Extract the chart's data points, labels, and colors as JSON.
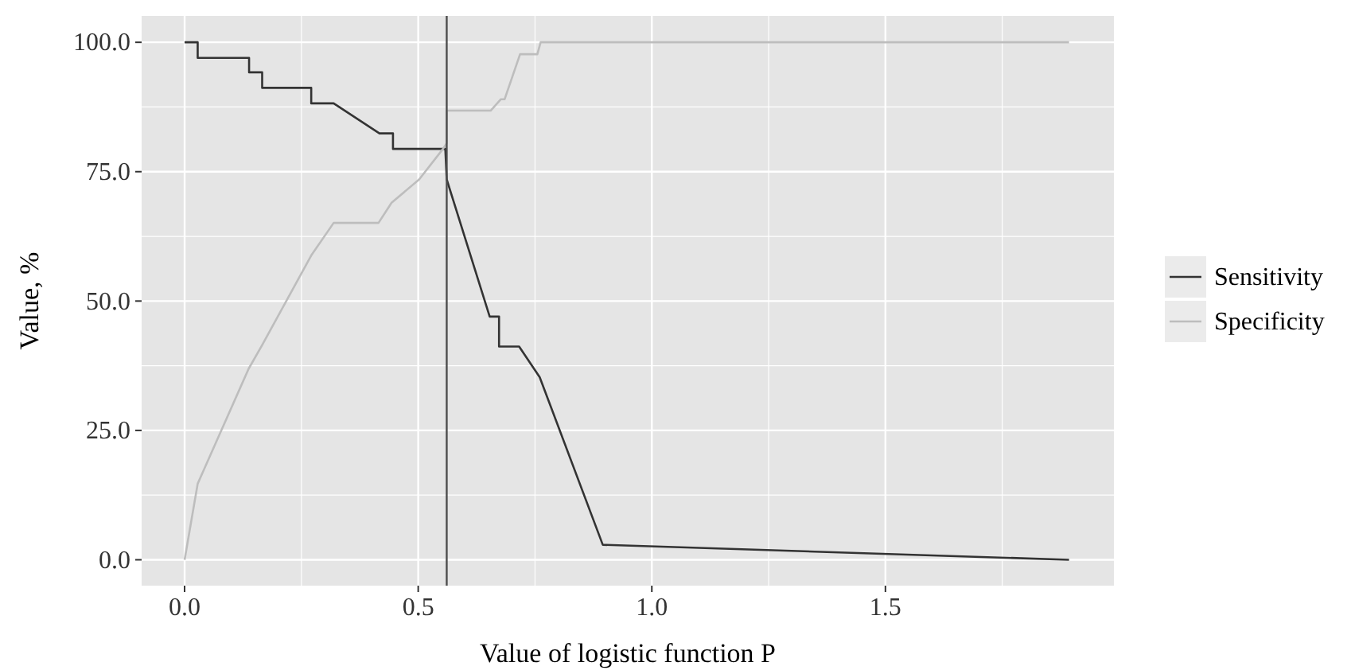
{
  "chart_data": {
    "type": "line",
    "xlabel": "Value of logistic function P",
    "ylabel": "Value, %",
    "xlim": [
      -0.092,
      1.989
    ],
    "ylim": [
      -5,
      105.1
    ],
    "xticks": [
      {
        "value": 0,
        "label": "0.0"
      },
      {
        "value": 0.5,
        "label": "0.5"
      },
      {
        "value": 1,
        "label": "1.0"
      },
      {
        "value": 1.5,
        "label": "1.5"
      }
    ],
    "yticks": [
      {
        "value": 0,
        "label": "0.0"
      },
      {
        "value": 25,
        "label": "25.0"
      },
      {
        "value": 50,
        "label": "50.0"
      },
      {
        "value": 75,
        "label": "75.0"
      },
      {
        "value": 100,
        "label": "100.0"
      }
    ],
    "grid": true,
    "legend": "right",
    "marker": "none",
    "line_style": "solid",
    "ref_lines": [
      {
        "axis": "x",
        "value": 0.561,
        "color": "#4d4d4d"
      }
    ],
    "series": [
      {
        "name": "Sensitivity",
        "color": "#333333",
        "x": [
          0,
          0.028,
          0.028,
          0.138,
          0.138,
          0.166,
          0.166,
          0.271,
          0.271,
          0.319,
          0.417,
          0.446,
          0.446,
          0.553,
          0.558,
          0.561,
          0.653,
          0.653,
          0.673,
          0.673,
          0.716,
          0.76,
          0.895,
          1.893
        ],
        "values": [
          100,
          100,
          97,
          97,
          94.2,
          94.2,
          91.2,
          91.2,
          88.2,
          88.2,
          82.4,
          82.4,
          79.4,
          79.4,
          79.4,
          73.5,
          47,
          47,
          47,
          41.2,
          41.2,
          35.3,
          2.9,
          0
        ]
      },
      {
        "name": "Specificity",
        "color": "#bdbdbd",
        "x": [
          0,
          0.028,
          0.137,
          0.166,
          0.271,
          0.319,
          0.415,
          0.443,
          0.502,
          0.553,
          0.561,
          0.561,
          0.655,
          0.677,
          0.685,
          0.718,
          0.755,
          0.762,
          1.893
        ],
        "values": [
          0,
          14.7,
          36.9,
          41.5,
          58.8,
          65.1,
          65.1,
          69,
          73.5,
          79.4,
          80.5,
          86.8,
          86.8,
          89,
          89,
          97.7,
          97.7,
          100,
          100
        ]
      }
    ]
  }
}
